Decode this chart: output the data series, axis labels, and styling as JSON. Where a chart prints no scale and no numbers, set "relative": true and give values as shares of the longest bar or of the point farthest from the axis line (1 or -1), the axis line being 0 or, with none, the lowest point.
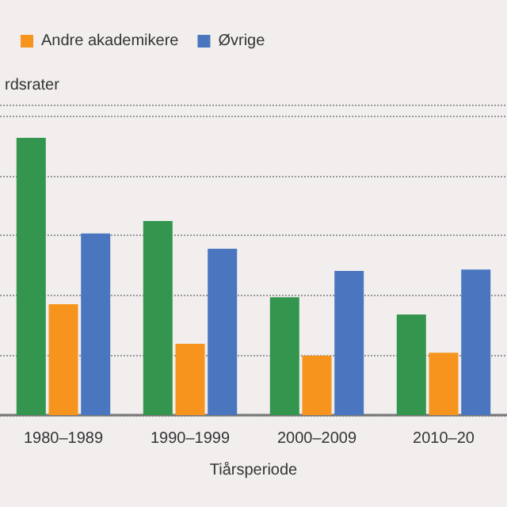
{
  "chart_data": {
    "type": "bar",
    "relative": true,
    "ylabel": "rdsrater",
    "xlabel": "Tiårsperiode",
    "categories": [
      "1980–1989",
      "1990–1999",
      "2000–2009",
      "2010–20"
    ],
    "series": [
      {
        "color": "#34954f",
        "values": [
          1,
          0.7,
          0.425,
          0.363
        ]
      },
      {
        "name": "Andre akademikere",
        "color": "#f7941d",
        "values": [
          0.4,
          0.257,
          0.214,
          0.225
        ]
      },
      {
        "name": "Øvrige",
        "color": "#4a76c0",
        "values": [
          0.655,
          0.6,
          0.52,
          0.525
        ]
      }
    ],
    "grid": "y",
    "legend": "top left"
  }
}
